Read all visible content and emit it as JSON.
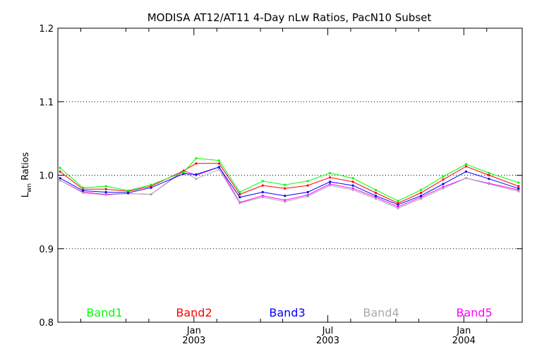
{
  "chart_data": {
    "type": "line",
    "title": "MODISA AT12/AT11 4-Day nLw Ratios, PacN10 Subset",
    "ylabel_main": "L",
    "ylabel_sub": "wn",
    "ylabel_rest": " Ratios",
    "ylim": [
      0.8,
      1.2
    ],
    "y_ticks": [
      "0.8",
      "0.9",
      "1.0",
      "1.1",
      "1.2"
    ],
    "y_tick_values": [
      0.8,
      0.9,
      1.0,
      1.1,
      1.2
    ],
    "y_gridlines": [
      0.9,
      1.0,
      1.1
    ],
    "grid": "dotted horizontal",
    "xlim": [
      "2002-07-01",
      "2004-03-20"
    ],
    "x_major_ticks": [
      {
        "date": "2003-01-01",
        "month": "Jan",
        "year": "2003"
      },
      {
        "date": "2003-07-01",
        "month": "Jul",
        "year": "2003"
      },
      {
        "date": "2004-01-01",
        "month": "Jan",
        "year": "2004"
      }
    ],
    "x_minor_ticks": [
      "2002-08-01",
      "2002-10-01",
      "2002-11-01",
      "2003-02-01",
      "2003-04-01",
      "2003-05-01",
      "2003-08-01",
      "2003-10-01",
      "2003-11-01",
      "2004-02-01"
    ],
    "x": [
      "2002-07-04",
      "2002-08-04",
      "2002-09-04",
      "2002-10-04",
      "2002-11-04",
      "2002-12-18",
      "2003-01-04",
      "2003-02-04",
      "2003-03-04",
      "2003-04-04",
      "2003-05-04",
      "2003-06-04",
      "2003-07-04",
      "2003-08-04",
      "2003-09-04",
      "2003-10-04",
      "2003-11-04",
      "2003-12-04",
      "2004-01-04",
      "2004-02-04",
      "2004-03-15"
    ],
    "legend_placement": "bottom, inside plot area",
    "series": [
      {
        "name": "Band1",
        "color": "#00ff00",
        "values": [
          1.01,
          0.983,
          0.985,
          0.979,
          0.987,
          1.004,
          1.023,
          1.02,
          0.977,
          0.992,
          0.987,
          0.992,
          1.003,
          0.996,
          0.98,
          0.965,
          0.98,
          0.998,
          1.015,
          1.003,
          0.99
        ]
      },
      {
        "name": "Band2",
        "color": "#ff0000",
        "values": [
          1.005,
          0.981,
          0.981,
          0.978,
          0.985,
          1.006,
          1.016,
          1.016,
          0.974,
          0.986,
          0.982,
          0.986,
          0.997,
          0.991,
          0.976,
          0.962,
          0.976,
          0.994,
          1.012,
          1.0,
          0.985
        ]
      },
      {
        "name": "Band3",
        "color": "#0000ff",
        "values": [
          0.996,
          0.979,
          0.977,
          0.976,
          0.983,
          1.002,
          1.001,
          1.011,
          0.97,
          0.977,
          0.972,
          0.977,
          0.991,
          0.986,
          0.972,
          0.96,
          0.972,
          0.988,
          1.005,
          0.995,
          0.982
        ]
      },
      {
        "name": "Band4",
        "color": "#aaaaaa",
        "values": [
          0.993,
          0.976,
          0.973,
          0.975,
          0.974,
          1.005,
          0.995,
          1.008,
          0.962,
          0.97,
          0.964,
          0.971,
          0.986,
          0.98,
          0.968,
          0.955,
          0.968,
          0.982,
          0.996,
          0.988,
          0.978
        ]
      },
      {
        "name": "Band5",
        "color": "#ff00ff",
        "values": [
          0.993,
          0.977,
          0.974,
          0.975,
          0.974,
          1.006,
          1.0,
          1.011,
          0.963,
          0.972,
          0.966,
          0.973,
          0.988,
          0.982,
          0.97,
          0.957,
          0.97,
          0.984,
          0.996,
          0.989,
          0.98
        ]
      }
    ]
  }
}
